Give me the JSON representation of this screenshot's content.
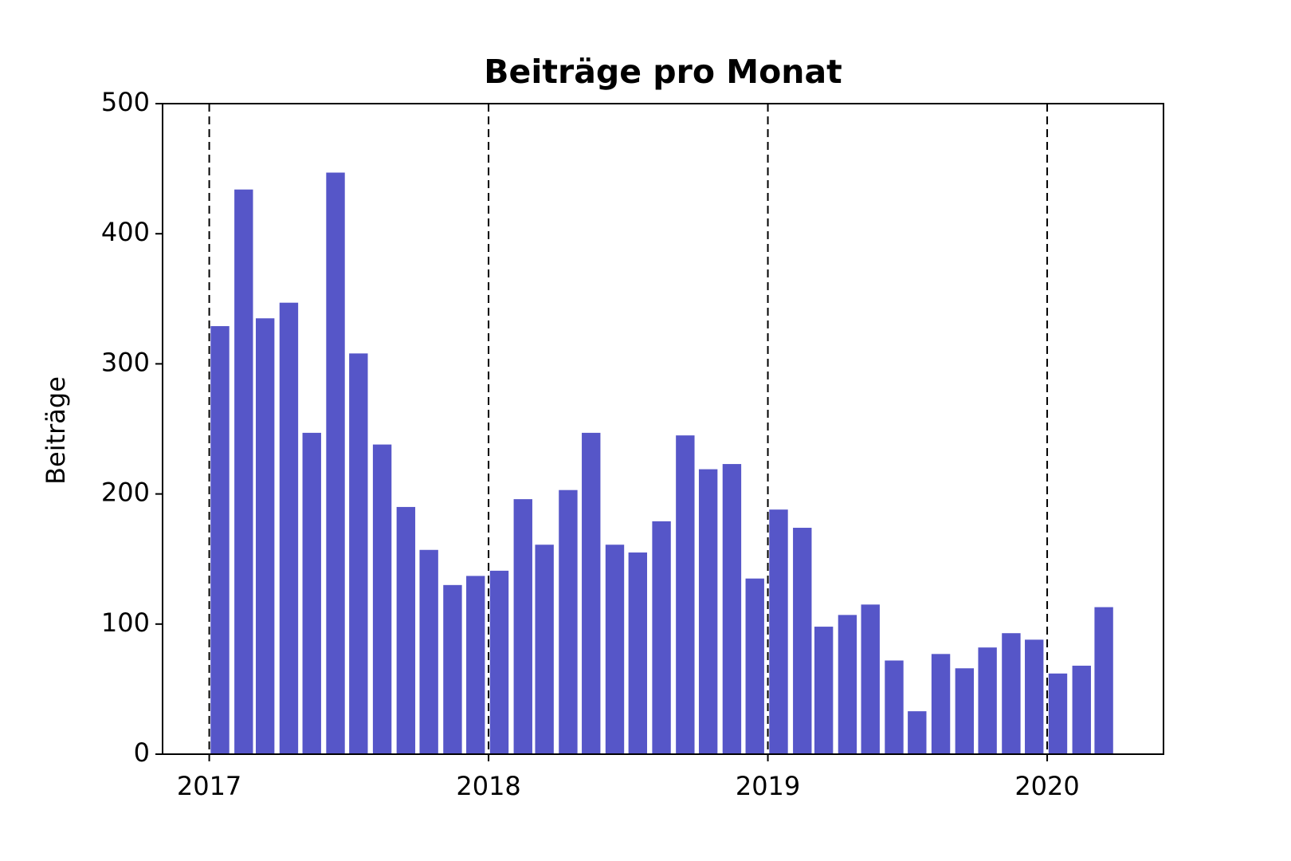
{
  "chart_data": {
    "type": "bar",
    "title": "Beiträge pro Monat",
    "y_label": "Beiträge",
    "x": [
      "2017-01",
      "2017-02",
      "2017-03",
      "2017-04",
      "2017-05",
      "2017-06",
      "2017-07",
      "2017-08",
      "2017-09",
      "2017-10",
      "2017-11",
      "2017-12",
      "2018-01",
      "2018-02",
      "2018-03",
      "2018-04",
      "2018-05",
      "2018-06",
      "2018-07",
      "2018-08",
      "2018-09",
      "2018-10",
      "2018-11",
      "2018-12",
      "2019-01",
      "2019-02",
      "2019-03",
      "2019-04",
      "2019-05",
      "2019-06",
      "2019-07",
      "2019-08",
      "2019-09",
      "2019-10",
      "2019-11",
      "2019-12",
      "2020-01",
      "2020-02",
      "2020-03"
    ],
    "values": [
      329,
      434,
      335,
      347,
      247,
      447,
      308,
      238,
      190,
      157,
      130,
      137,
      141,
      196,
      161,
      203,
      247,
      161,
      155,
      179,
      245,
      219,
      223,
      135,
      188,
      174,
      98,
      107,
      115,
      72,
      33,
      77,
      66,
      82,
      93,
      88,
      62,
      68,
      113
    ],
    "color": "#5656c8",
    "xlim": [
      "2016-11",
      "2020-06"
    ],
    "xticks": [
      "2017",
      "2018",
      "2019",
      "2020"
    ],
    "ylim": [
      0,
      500
    ],
    "yticks": [
      0,
      100,
      200,
      300,
      400,
      500
    ],
    "grid": "x",
    "grid_style": "dashed"
  }
}
